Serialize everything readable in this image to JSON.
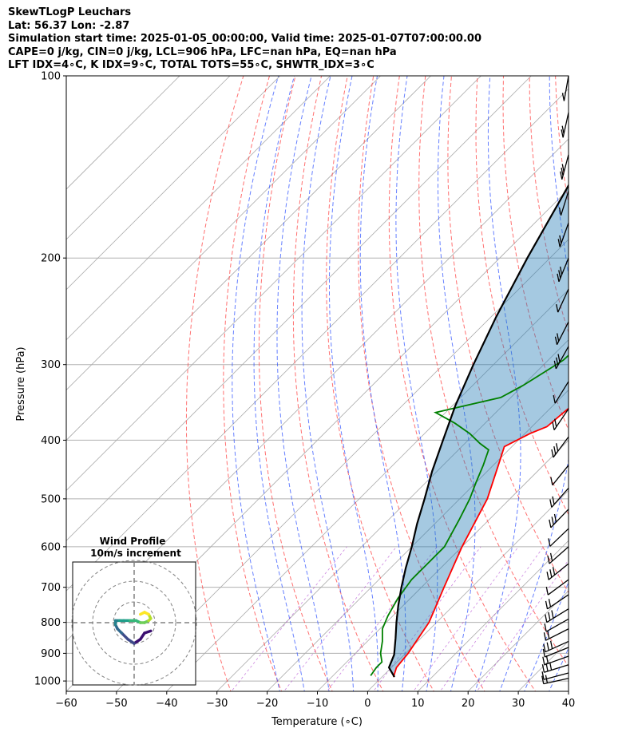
{
  "header": {
    "line1": "SkewTLogP Leuchars",
    "line2": "Lat: 56.37   Lon: -2.87",
    "line3": "Simulation start time: 2025-01-05_00:00:00, Valid time: 2025-01-07T07:00:00.00",
    "line4": "CAPE=0 j/kg, CIN=0 j/kg, LCL=906 hPa, LFC=nan hPa, EQ=nan hPa",
    "line5": "LFT IDX=4∘C, K IDX=9∘C, TOTAL TOTS=55∘C, SHWTR_IDX=3∘C"
  },
  "chart_data": {
    "type": "line",
    "xlabel": "Temperature (∘C)",
    "ylabel": "Pressure (hPa)",
    "xlim": [
      -60,
      40
    ],
    "ylim": [
      1040,
      100
    ],
    "y_scale": "log",
    "x_ticks": [
      -60,
      -50,
      -40,
      -30,
      -20,
      -10,
      0,
      10,
      20,
      30,
      40
    ],
    "x_tick_labels": [
      "−60",
      "−50",
      "−40",
      "−30",
      "−20",
      "−10",
      "0",
      "10",
      "20",
      "30",
      "40"
    ],
    "y_ticks": [
      1000,
      900,
      800,
      700,
      600,
      500,
      400,
      300,
      200,
      100
    ],
    "y_tick_labels": [
      "1000",
      "900",
      "800",
      "700",
      "600",
      "500",
      "400",
      "300",
      "200",
      "100"
    ],
    "grid": true,
    "series": [
      {
        "color": "#ff0000",
        "points": [
          [
            2.3,
            985
          ],
          [
            1.0,
            950
          ],
          [
            0.5,
            900
          ],
          [
            -1.5,
            800
          ],
          [
            -5.5,
            700
          ],
          [
            -10,
            600
          ],
          [
            -14.5,
            500
          ],
          [
            -19,
            440
          ],
          [
            -21.5,
            410
          ],
          [
            -19,
            390
          ],
          [
            -17,
            380
          ],
          [
            -16.5,
            360
          ],
          [
            -15.5,
            330
          ],
          [
            -15,
            315
          ],
          [
            -13,
            300
          ],
          [
            -11,
            285
          ],
          [
            -9.5,
            270
          ],
          [
            -8,
            250
          ],
          [
            -6.5,
            235
          ],
          [
            -4.5,
            210
          ],
          [
            -3,
            195
          ],
          [
            -1.5,
            180
          ],
          [
            1,
            165
          ],
          [
            2.5,
            155
          ],
          [
            4,
            145
          ],
          [
            5.5,
            135
          ],
          [
            6.5,
            125
          ],
          [
            7,
            115
          ],
          [
            7.5,
            100
          ]
        ]
      },
      {
        "color": "#008000",
        "points": [
          [
            -2.5,
            980
          ],
          [
            -3,
            950
          ],
          [
            -3,
            930
          ],
          [
            -5,
            900
          ],
          [
            -7,
            860
          ],
          [
            -9.5,
            820
          ],
          [
            -11,
            780
          ],
          [
            -12.5,
            730
          ],
          [
            -13.5,
            680
          ],
          [
            -13.5,
            640
          ],
          [
            -13.5,
            600
          ],
          [
            -16,
            540
          ],
          [
            -18,
            500
          ],
          [
            -20,
            470
          ],
          [
            -22,
            440
          ],
          [
            -24,
            415
          ],
          [
            -27,
            405
          ],
          [
            -31,
            390
          ],
          [
            -36,
            375
          ],
          [
            -42,
            360
          ],
          [
            -32,
            340
          ],
          [
            -30,
            325
          ],
          [
            -28.5,
            310
          ],
          [
            -27,
            295
          ],
          [
            -26.5,
            270
          ],
          [
            -26,
            240
          ],
          [
            -25,
            220
          ],
          [
            -24,
            200
          ],
          [
            -23,
            180
          ],
          [
            -21,
            170
          ],
          [
            -18,
            160
          ],
          [
            -15.5,
            150
          ],
          [
            -11,
            135
          ],
          [
            -7,
            120
          ],
          [
            -4,
            110
          ],
          [
            -1,
            100
          ]
        ]
      },
      {
        "color": "#000000",
        "points": [
          [
            2.5,
            985
          ],
          [
            -0.5,
            950
          ],
          [
            -2,
            905
          ],
          [
            -5,
            850
          ],
          [
            -8,
            800
          ],
          [
            -11,
            750
          ],
          [
            -14,
            700
          ],
          [
            -17,
            650
          ],
          [
            -20,
            600
          ],
          [
            -23.5,
            550
          ],
          [
            -27,
            500
          ],
          [
            -31,
            450
          ],
          [
            -35,
            400
          ],
          [
            -39.5,
            350
          ],
          [
            -44,
            300
          ],
          [
            -49,
            250
          ],
          [
            -54.5,
            200
          ],
          [
            -61,
            150
          ],
          [
            -70,
            100
          ]
        ]
      }
    ],
    "parcel_shading": "between temperature and parcel profile (#1f77b4, alpha 0.4)",
    "wind_barbs_panel": "right edge, barbs from 1000 to 100 hPa",
    "inset": {
      "title_line1": "Wind Profile",
      "title_line2": "10m/s increment",
      "hodograph": [
        [
          8,
          -4
        ],
        [
          5,
          -5
        ],
        [
          3,
          -8
        ],
        [
          0,
          -10
        ],
        [
          -3,
          -8
        ],
        [
          -6,
          -5
        ],
        [
          -8,
          -3
        ],
        [
          -9,
          -1
        ],
        [
          -9,
          1
        ],
        [
          -7,
          1
        ],
        [
          -5,
          1
        ],
        [
          -2,
          1
        ],
        [
          1,
          1
        ],
        [
          3,
          0
        ],
        [
          5,
          0
        ],
        [
          7,
          1
        ],
        [
          8,
          2
        ],
        [
          7,
          4
        ],
        [
          5,
          5
        ],
        [
          3,
          4
        ]
      ]
    }
  }
}
